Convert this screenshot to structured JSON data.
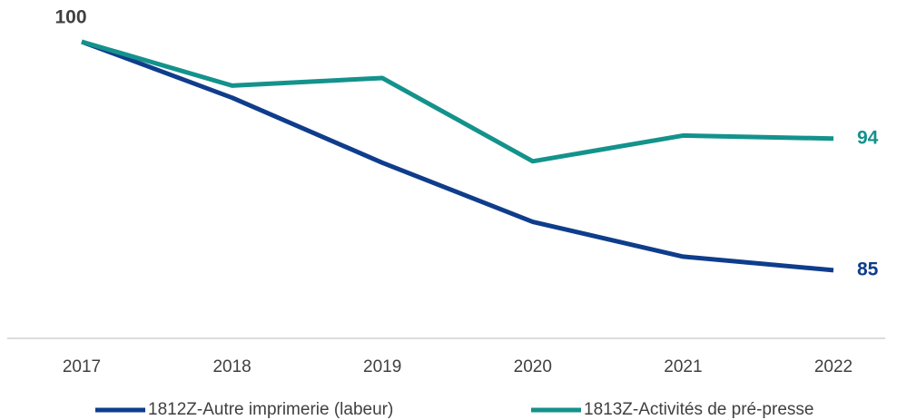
{
  "chart_data": {
    "type": "line",
    "categories": [
      "2017",
      "2018",
      "2019",
      "2020",
      "2021",
      "2022"
    ],
    "series": [
      {
        "name": "1812Z-Autre imprimerie (labeur)",
        "color": "#0f3d8c",
        "values": [
          100,
          96.3,
          92.0,
          88.1,
          85.8,
          84.9
        ],
        "value_labels": [
          "100",
          null,
          null,
          null,
          null,
          "85"
        ]
      },
      {
        "name": "1813Z-Activités de pré-presse",
        "color": "#14928c",
        "values": [
          100,
          97.1,
          97.6,
          92.1,
          93.8,
          93.6
        ],
        "value_labels": [
          null,
          null,
          null,
          null,
          null,
          "94"
        ]
      }
    ],
    "ylim": [
      80.4,
      102
    ],
    "legend": "bottom"
  }
}
